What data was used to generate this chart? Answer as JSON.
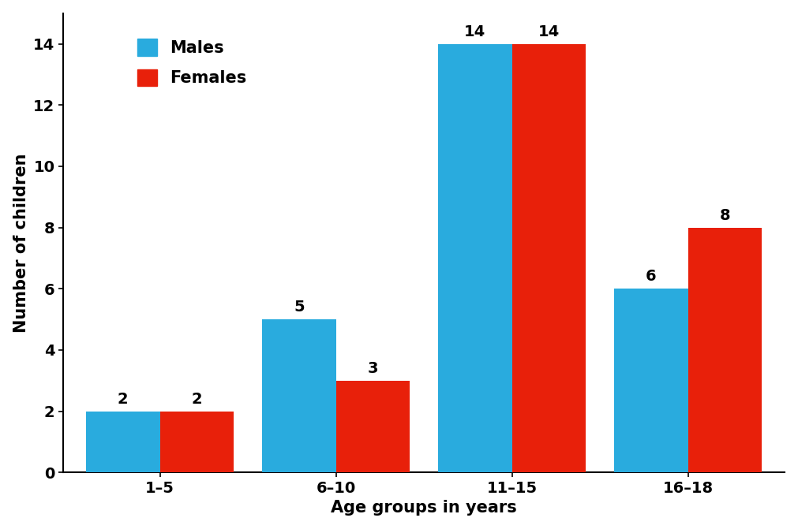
{
  "categories": [
    "1–5",
    "6–10",
    "11–15",
    "16–18"
  ],
  "males": [
    2,
    5,
    14,
    6
  ],
  "females": [
    2,
    3,
    14,
    8
  ],
  "male_color": "#29ABDE",
  "female_color": "#E8200A",
  "ylabel": "Number of children",
  "xlabel": "Age groups in years",
  "ylim": [
    0,
    15.0
  ],
  "yticks": [
    0,
    2,
    4,
    6,
    8,
    10,
    12,
    14
  ],
  "bar_width": 0.42,
  "legend_labels": [
    "Males",
    "Females"
  ],
  "label_fontsize": 15,
  "tick_fontsize": 14,
  "value_fontsize": 14,
  "background_color": "#FFFFFF"
}
